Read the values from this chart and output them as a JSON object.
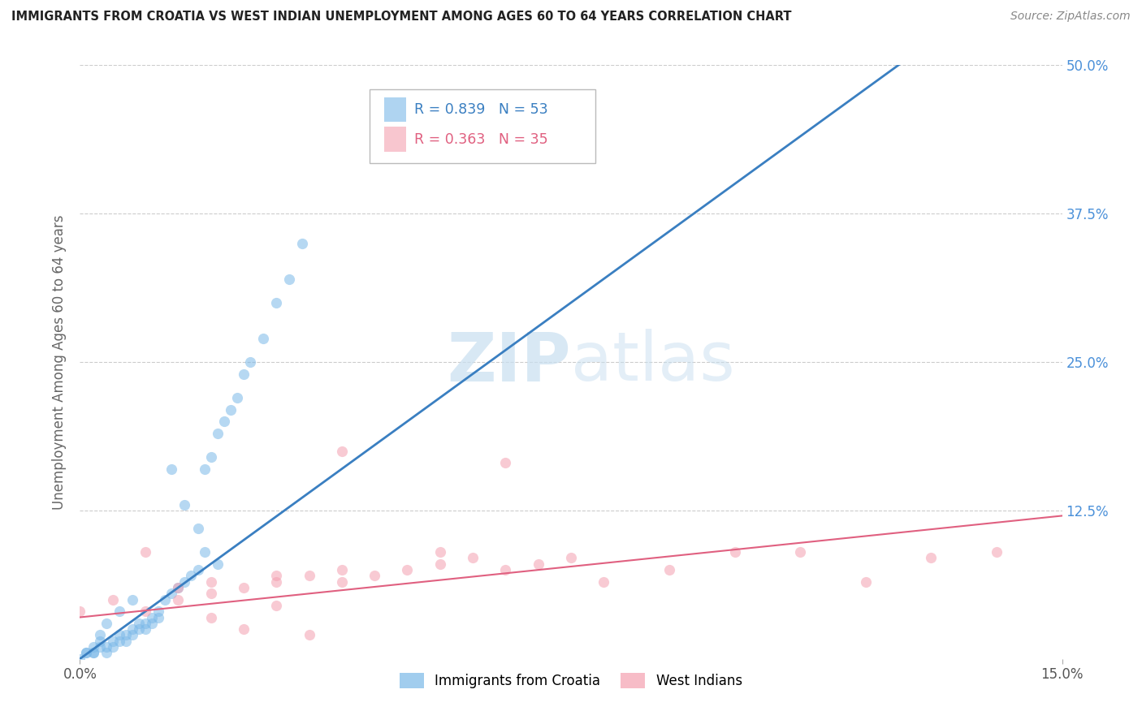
{
  "title": "IMMIGRANTS FROM CROATIA VS WEST INDIAN UNEMPLOYMENT AMONG AGES 60 TO 64 YEARS CORRELATION CHART",
  "source": "Source: ZipAtlas.com",
  "ylabel": "Unemployment Among Ages 60 to 64 years",
  "xlim": [
    0.0,
    0.15
  ],
  "ylim": [
    0.0,
    0.5
  ],
  "xticks": [
    0.0,
    0.15
  ],
  "xticklabels": [
    "0.0%",
    "15.0%"
  ],
  "yticks": [
    0.125,
    0.25,
    0.375,
    0.5
  ],
  "yticklabels": [
    "12.5%",
    "25.0%",
    "37.5%",
    "50.0%"
  ],
  "grid_color": "#cccccc",
  "background_color": "#ffffff",
  "legend_r1": "R = 0.839",
  "legend_n1": "N = 53",
  "legend_r2": "R = 0.363",
  "legend_n2": "N = 35",
  "series1_label": "Immigrants from Croatia",
  "series2_label": "West Indians",
  "series1_color": "#7ab8e8",
  "series2_color": "#f4a0b0",
  "line1_color": "#3a7fc1",
  "line2_color": "#e06080",
  "tick_color": "#4a90d9",
  "title_color": "#222222",
  "source_color": "#888888",
  "ylabel_color": "#666666",
  "line1_slope": 4.0,
  "line1_intercept": 0.0,
  "line2_slope": 0.57,
  "line2_intercept": 0.035,
  "croatia_x": [
    0.001,
    0.002,
    0.003,
    0.003,
    0.004,
    0.004,
    0.005,
    0.005,
    0.006,
    0.006,
    0.007,
    0.007,
    0.008,
    0.008,
    0.009,
    0.009,
    0.01,
    0.01,
    0.011,
    0.011,
    0.012,
    0.012,
    0.013,
    0.014,
    0.015,
    0.016,
    0.017,
    0.018,
    0.019,
    0.02,
    0.021,
    0.022,
    0.023,
    0.024,
    0.025,
    0.026,
    0.028,
    0.03,
    0.032,
    0.034,
    0.014,
    0.016,
    0.018,
    0.019,
    0.021,
    0.008,
    0.006,
    0.004,
    0.003,
    0.002,
    0.001,
    0.0,
    0.002
  ],
  "croatia_y": [
    0.005,
    0.005,
    0.01,
    0.015,
    0.01,
    0.005,
    0.015,
    0.01,
    0.02,
    0.015,
    0.02,
    0.015,
    0.025,
    0.02,
    0.025,
    0.03,
    0.03,
    0.025,
    0.03,
    0.035,
    0.04,
    0.035,
    0.05,
    0.055,
    0.06,
    0.065,
    0.07,
    0.075,
    0.16,
    0.17,
    0.19,
    0.2,
    0.21,
    0.22,
    0.24,
    0.25,
    0.27,
    0.3,
    0.32,
    0.35,
    0.16,
    0.13,
    0.11,
    0.09,
    0.08,
    0.05,
    0.04,
    0.03,
    0.02,
    0.01,
    0.005,
    0.0,
    0.005
  ],
  "westindian_x": [
    0.0,
    0.005,
    0.01,
    0.015,
    0.015,
    0.02,
    0.02,
    0.025,
    0.03,
    0.03,
    0.035,
    0.04,
    0.04,
    0.045,
    0.05,
    0.055,
    0.06,
    0.065,
    0.07,
    0.075,
    0.04,
    0.065,
    0.055,
    0.08,
    0.09,
    0.1,
    0.11,
    0.12,
    0.13,
    0.14,
    0.02,
    0.025,
    0.03,
    0.035,
    0.01
  ],
  "westindian_y": [
    0.04,
    0.05,
    0.04,
    0.05,
    0.06,
    0.055,
    0.065,
    0.06,
    0.065,
    0.07,
    0.07,
    0.075,
    0.065,
    0.07,
    0.075,
    0.08,
    0.085,
    0.075,
    0.08,
    0.085,
    0.175,
    0.165,
    0.09,
    0.065,
    0.075,
    0.09,
    0.09,
    0.065,
    0.085,
    0.09,
    0.035,
    0.025,
    0.045,
    0.02,
    0.09
  ]
}
